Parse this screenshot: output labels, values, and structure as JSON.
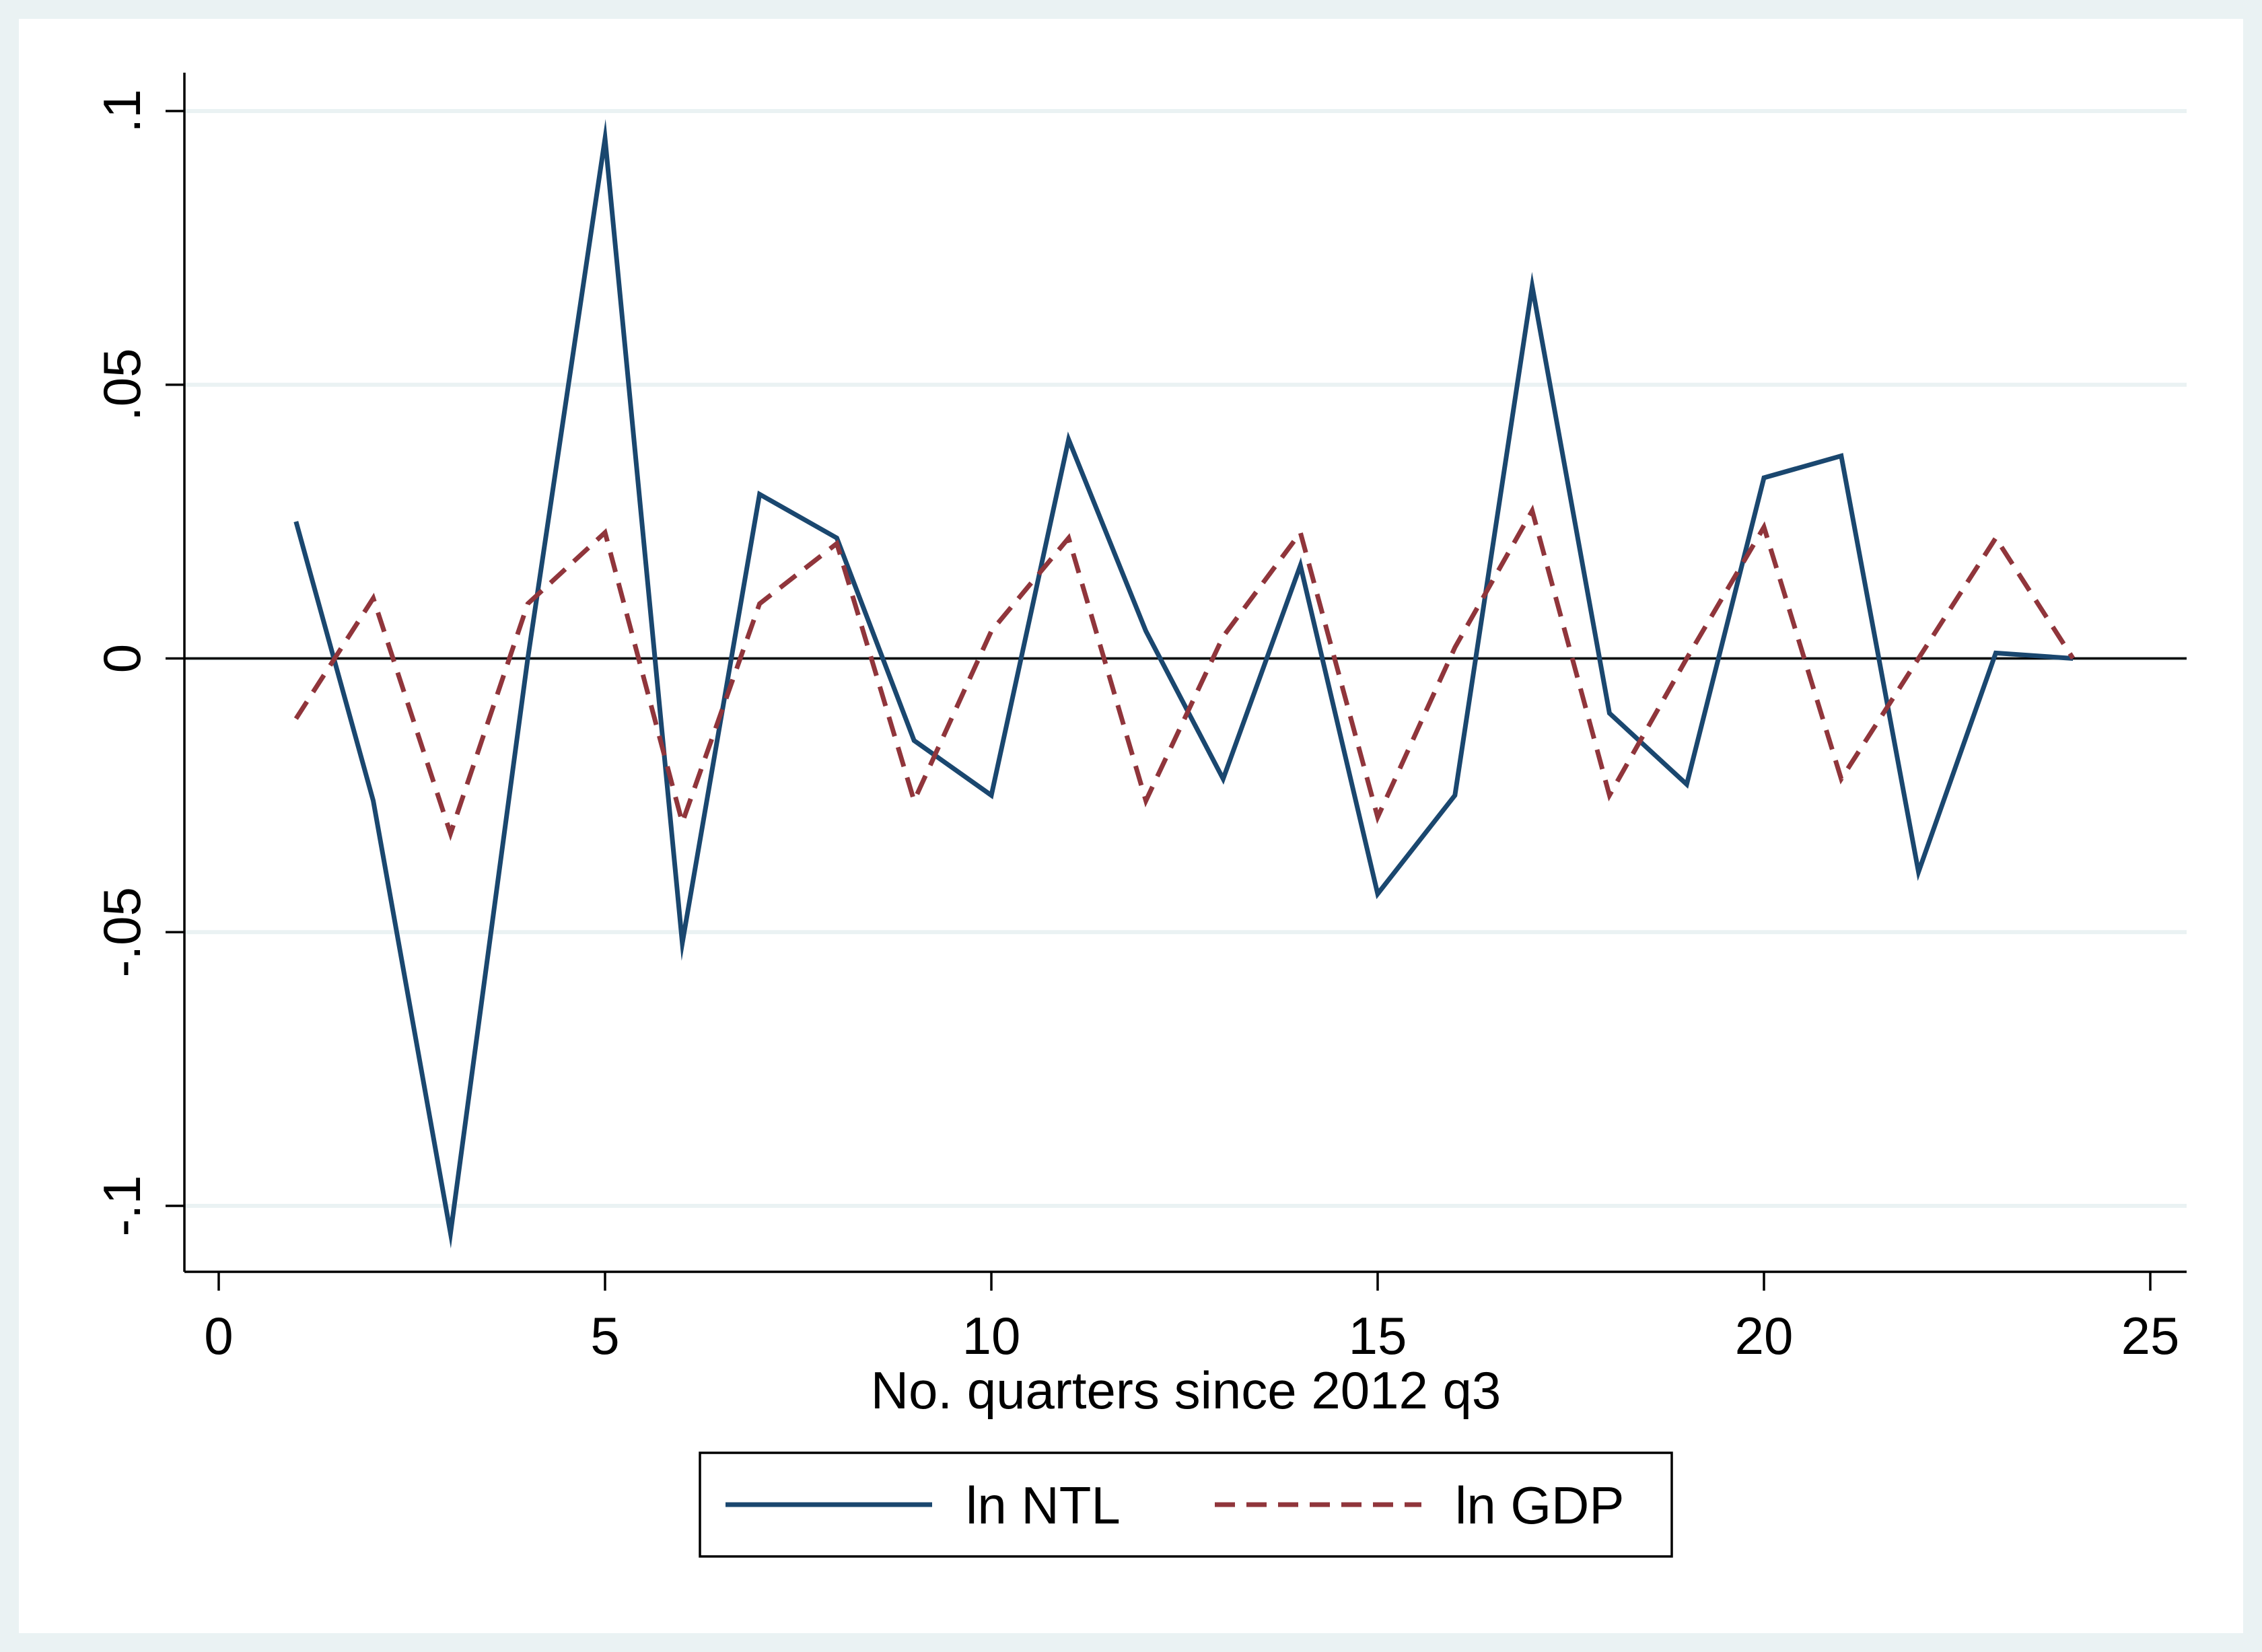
{
  "chart_data": {
    "type": "line",
    "title": "",
    "xlabel": "No. quarters since 2012 q3",
    "ylabel": "",
    "xlim": [
      0,
      25
    ],
    "ylim": [
      -0.1,
      0.1
    ],
    "x_ticks": [
      0,
      5,
      10,
      15,
      20,
      25
    ],
    "x_tick_labels": [
      "0",
      "5",
      "10",
      "15",
      "20",
      "25"
    ],
    "y_ticks": [
      -0.1,
      -0.05,
      0,
      0.05,
      0.1
    ],
    "y_tick_labels": [
      "-.1",
      "-.05",
      "0",
      ".05",
      ".1"
    ],
    "grid": true,
    "zero_reference_line": true,
    "legend_position": "bottom",
    "x": [
      1,
      2,
      3,
      4,
      5,
      6,
      7,
      8,
      9,
      10,
      11,
      12,
      13,
      14,
      15,
      16,
      17,
      18,
      19,
      20,
      21,
      22,
      23,
      24
    ],
    "series": [
      {
        "name": "ln NTL",
        "color": "#1a476f",
        "style": "solid",
        "values": [
          0.025,
          -0.026,
          -0.105,
          0.0,
          0.095,
          -0.052,
          0.03,
          0.022,
          -0.015,
          -0.025,
          0.04,
          0.005,
          -0.022,
          0.017,
          -0.043,
          -0.025,
          0.068,
          -0.01,
          -0.023,
          0.033,
          0.037,
          -0.039,
          0.001,
          0.0
        ]
      },
      {
        "name": "ln GDP",
        "color": "#90353b",
        "style": "dashed",
        "values": [
          -0.011,
          0.011,
          -0.032,
          0.01,
          0.023,
          -0.03,
          0.01,
          0.021,
          -0.026,
          0.005,
          0.022,
          -0.026,
          0.004,
          0.023,
          -0.029,
          0.002,
          0.027,
          -0.025,
          0.0,
          0.024,
          -0.022,
          0.0,
          0.022,
          0.0
        ]
      }
    ],
    "colors": {
      "outer_background": "#eaf2f3",
      "plot_background": "#ffffff",
      "gridline": "#eaf2f3",
      "zero_line": "#000000"
    }
  }
}
